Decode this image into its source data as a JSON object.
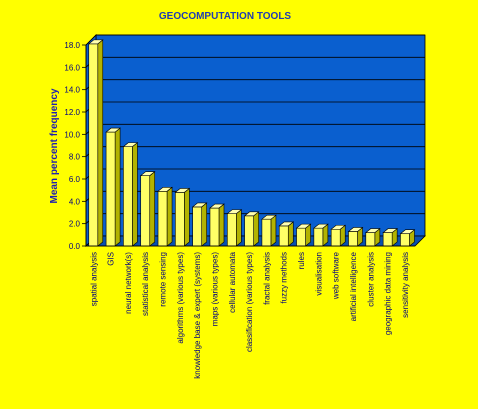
{
  "chart_data": {
    "type": "bar",
    "title": "GEOCOMPUTATION TOOLS",
    "xlabel": "",
    "ylabel": "Mean percent frequency",
    "ylim": [
      0,
      18
    ],
    "yticks": [
      "0.0",
      "2.0",
      "4.0",
      "6.0",
      "8.0",
      "10.0",
      "12.0",
      "14.0",
      "16.0",
      "18.0"
    ],
    "grid": true,
    "legend": "none",
    "categories": [
      "spatial analysis",
      "GIS",
      "neural network(s)",
      "statistical analysis",
      "remote sensing",
      "algorithms (various types)",
      "knowledge base & expert (systems)",
      "maps (various types)",
      "cellular automata",
      "classification (various types)",
      "fractal analysis",
      "fuzzy methods",
      "rules",
      "visualisation",
      "web software",
      "artificial intelligence",
      "cluster analysis",
      "geographic data mining",
      "sensitivity analysis"
    ],
    "values": [
      18.1,
      10.2,
      8.9,
      6.3,
      4.9,
      4.8,
      3.5,
      3.4,
      2.9,
      2.7,
      2.4,
      1.8,
      1.6,
      1.6,
      1.5,
      1.3,
      1.2,
      1.2,
      1.1
    ],
    "colors": {
      "background": "#ffff00",
      "plot_area": "#0a5fcf",
      "bar_front": "#ffff66",
      "bar_side": "#b3b300",
      "bar_top": "#ffffb0",
      "gridline": "#000000",
      "text": "#000080",
      "title": "#1f3bb3"
    }
  }
}
